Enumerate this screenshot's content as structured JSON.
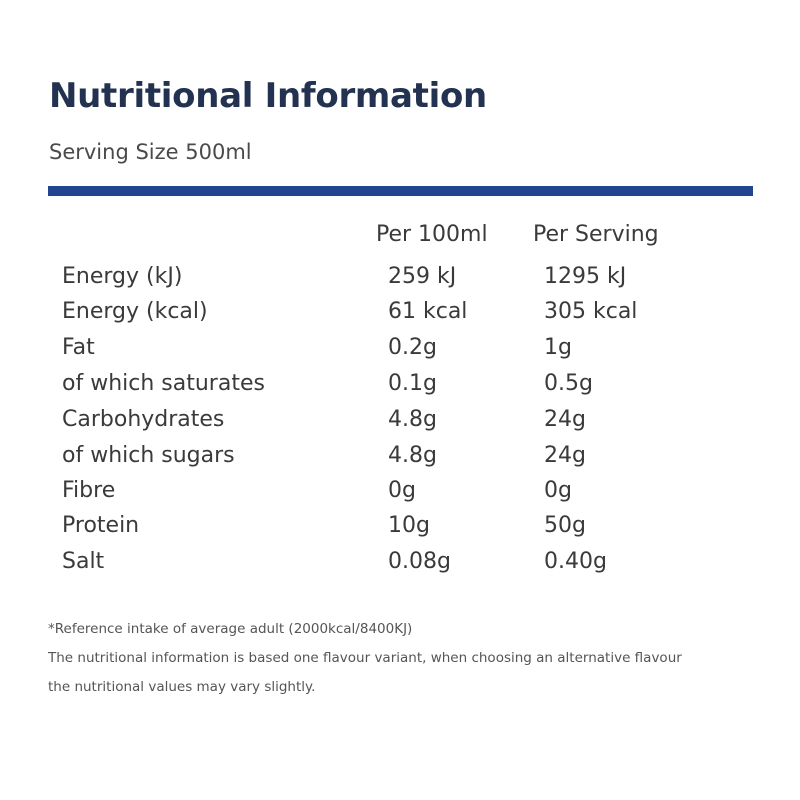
{
  "title": "Nutritional Information",
  "serving_size": "Serving Size 500ml",
  "colors": {
    "title": "#233250",
    "rule": "#21468f",
    "text": "#3a3a3a"
  },
  "table": {
    "headers": {
      "per_100": "Per 100ml",
      "per_serving": "Per Serving"
    },
    "rows": [
      {
        "label": "Energy (kJ)",
        "per_100": "259 kJ",
        "per_serving": "1295 kJ"
      },
      {
        "label": "Energy (kcal)",
        "per_100": "61 kcal",
        "per_serving": "305 kcal"
      },
      {
        "label": "Fat",
        "per_100": "0.2g",
        "per_serving": "1g"
      },
      {
        "label": "of which saturates",
        "per_100": "0.1g",
        "per_serving": "0.5g"
      },
      {
        "label": "Carbohydrates",
        "per_100": "4.8g",
        "per_serving": "24g"
      },
      {
        "label": "of which sugars",
        "per_100": "4.8g",
        "per_serving": "24g"
      },
      {
        "label": "Fibre",
        "per_100": "0g",
        "per_serving": "0g"
      },
      {
        "label": "Protein",
        "per_100": "10g",
        "per_serving": "50g"
      },
      {
        "label": "Salt",
        "per_100": "0.08g",
        "per_serving": "0.40g"
      }
    ]
  },
  "notes": {
    "reference": "*Reference intake of average adult (2000kcal/8400KJ)",
    "disclaimer_line1": "The nutritional information is based one flavour variant, when choosing an alternative flavour",
    "disclaimer_line2": "the nutritional values may vary slightly."
  }
}
